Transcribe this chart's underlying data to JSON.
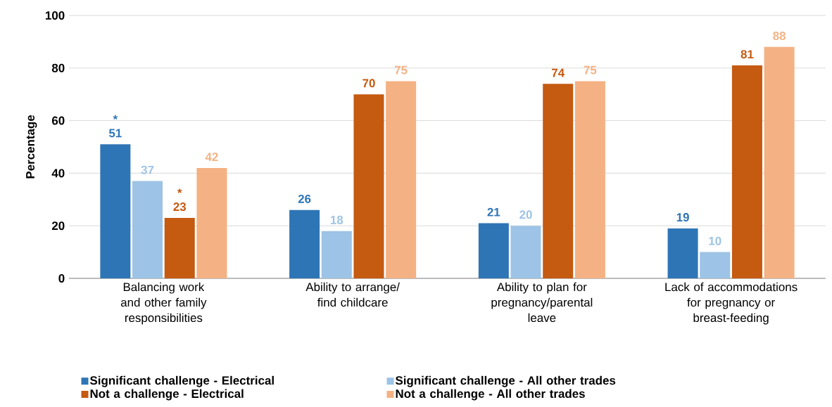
{
  "chart_data": {
    "type": "bar",
    "ylabel": "Percentage",
    "categories": [
      "Balancing work and other family responsibilities",
      "Ability to arrange/ find childcare",
      "Ability to plan for pregnancy/parental leave",
      "Lack of accommodations for pregnancy or breast-feeding"
    ],
    "series": [
      {
        "name": "Significant challenge - Electrical",
        "color": "#2e75b6",
        "values": [
          51,
          26,
          21,
          19
        ]
      },
      {
        "name": "Significant challenge - All other trades",
        "color": "#9dc3e6",
        "values": [
          37,
          18,
          20,
          10
        ]
      },
      {
        "name": "Not a challenge - Electrical",
        "color": "#c55a11",
        "values": [
          23,
          70,
          74,
          81
        ]
      },
      {
        "name": "Not a challenge - All other trades",
        "color": "#f4b183",
        "values": [
          42,
          75,
          75,
          88
        ]
      }
    ],
    "annotations": [
      "*",
      "*"
    ],
    "ylim": [
      0,
      100
    ],
    "yticks": [
      0,
      20,
      40,
      60,
      80,
      100
    ],
    "grid": "y",
    "legend": "bottom",
    "data_labels": true
  }
}
